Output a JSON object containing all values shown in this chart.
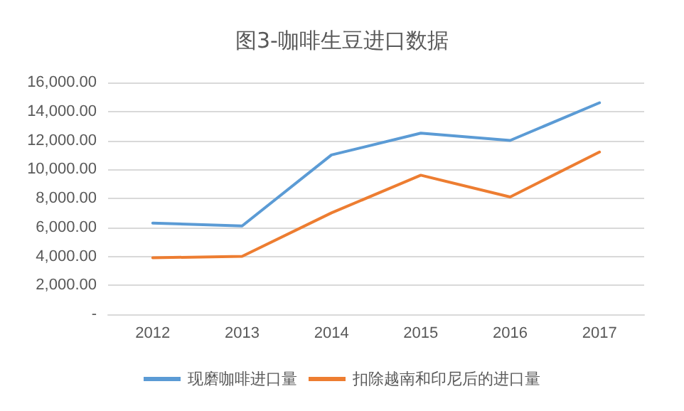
{
  "chart_data": {
    "type": "line",
    "title": "图3-咖啡生豆进口数据",
    "categories": [
      "2012",
      "2013",
      "2014",
      "2015",
      "2016",
      "2017"
    ],
    "series": [
      {
        "name": "现磨咖啡进口量",
        "color": "#5b9bd5",
        "values": [
          6300,
          6100,
          11000,
          12500,
          12000,
          14600
        ]
      },
      {
        "name": "扣除越南和印尼后的进口量",
        "color": "#ed7d31",
        "values": [
          3900,
          4000,
          7000,
          9600,
          8100,
          11200
        ]
      }
    ],
    "ylim": [
      0,
      16000
    ],
    "yticks": [
      {
        "value": 0,
        "label": "-"
      },
      {
        "value": 2000,
        "label": "2,000.00"
      },
      {
        "value": 4000,
        "label": "4,000.00"
      },
      {
        "value": 6000,
        "label": "6,000.00"
      },
      {
        "value": 8000,
        "label": "8,000.00"
      },
      {
        "value": 10000,
        "label": "10,000.00"
      },
      {
        "value": 12000,
        "label": "12,000.00"
      },
      {
        "value": 14000,
        "label": "14,000.00"
      },
      {
        "value": 16000,
        "label": "16,000.00"
      }
    ],
    "grid": "y",
    "legend": "bottom",
    "marker": "none",
    "line_style": "solid"
  }
}
